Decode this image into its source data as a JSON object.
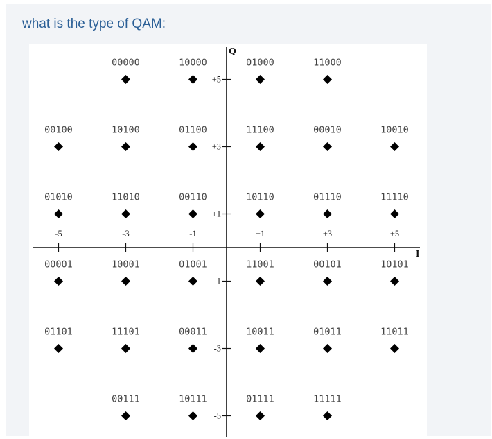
{
  "question": "what is the type of QAM:",
  "diagram": {
    "axis_labels": {
      "i": "I",
      "q": "Q"
    },
    "i_levels": [
      -5,
      -3,
      -1,
      1,
      3,
      5
    ],
    "q_levels": [
      5,
      3,
      1,
      -1,
      -3,
      -5
    ],
    "i_tick_labels": [
      "-5",
      "-3",
      "-1",
      "+1",
      "+3",
      "+5"
    ],
    "q_tick_labels": [
      "+5",
      "+3",
      "+1",
      "-1",
      "-3",
      "-5"
    ],
    "points": [
      {
        "i": -3,
        "q": 5,
        "code": "00000"
      },
      {
        "i": -1,
        "q": 5,
        "code": "10000"
      },
      {
        "i": 1,
        "q": 5,
        "code": "01000"
      },
      {
        "i": 3,
        "q": 5,
        "code": "11000"
      },
      {
        "i": -5,
        "q": 3,
        "code": "00100"
      },
      {
        "i": -3,
        "q": 3,
        "code": "10100"
      },
      {
        "i": -1,
        "q": 3,
        "code": "01100"
      },
      {
        "i": 1,
        "q": 3,
        "code": "11100"
      },
      {
        "i": 3,
        "q": 3,
        "code": "00010"
      },
      {
        "i": 5,
        "q": 3,
        "code": "10010"
      },
      {
        "i": -5,
        "q": 1,
        "code": "01010"
      },
      {
        "i": -3,
        "q": 1,
        "code": "11010"
      },
      {
        "i": -1,
        "q": 1,
        "code": "00110"
      },
      {
        "i": 1,
        "q": 1,
        "code": "10110"
      },
      {
        "i": 3,
        "q": 1,
        "code": "01110"
      },
      {
        "i": 5,
        "q": 1,
        "code": "11110"
      },
      {
        "i": -5,
        "q": -1,
        "code": "00001"
      },
      {
        "i": -3,
        "q": -1,
        "code": "10001"
      },
      {
        "i": -1,
        "q": -1,
        "code": "01001"
      },
      {
        "i": 1,
        "q": -1,
        "code": "11001"
      },
      {
        "i": 3,
        "q": -1,
        "code": "00101"
      },
      {
        "i": 5,
        "q": -1,
        "code": "10101"
      },
      {
        "i": -5,
        "q": -3,
        "code": "01101"
      },
      {
        "i": -3,
        "q": -3,
        "code": "11101"
      },
      {
        "i": -1,
        "q": -3,
        "code": "00011"
      },
      {
        "i": 1,
        "q": -3,
        "code": "10011"
      },
      {
        "i": 3,
        "q": -3,
        "code": "01011"
      },
      {
        "i": 5,
        "q": -3,
        "code": "11011"
      },
      {
        "i": -3,
        "q": -5,
        "code": "00111"
      },
      {
        "i": -1,
        "q": -5,
        "code": "10111"
      },
      {
        "i": 1,
        "q": -5,
        "code": "01111"
      },
      {
        "i": 3,
        "q": -5,
        "code": "11111"
      }
    ]
  }
}
